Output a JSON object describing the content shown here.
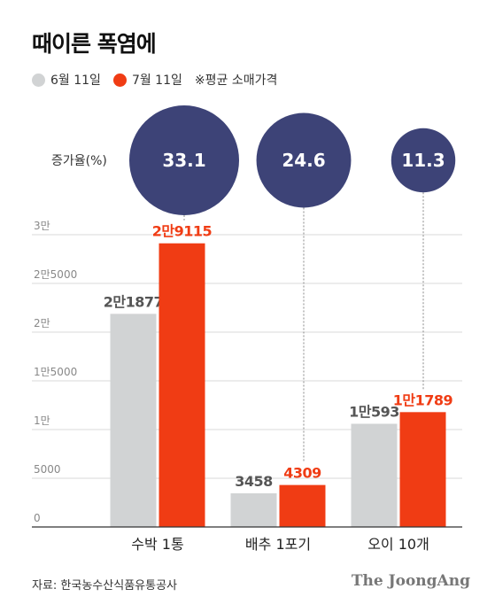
{
  "title": "때이른 폭염에",
  "legend": {
    "items": [
      {
        "label": "6월 11일",
        "color": "#d1d3d4"
      },
      {
        "label": "7월 11일",
        "color": "#f03c14"
      }
    ],
    "note": "※평균 소매가격"
  },
  "increase": {
    "label": "증가율(%)",
    "values": [
      "33.1",
      "24.6",
      "11.3"
    ],
    "color": "#3d4377"
  },
  "chart_data": {
    "type": "bar",
    "title": "때이른 폭염에",
    "categories": [
      "수박 1통",
      "배추 1포기",
      "오이 10개"
    ],
    "series": [
      {
        "name": "6월 11일",
        "values": [
          21877,
          3458,
          10593
        ],
        "labels": [
          "2만1877",
          "3458",
          "1만593"
        ],
        "color": "#d1d3d4"
      },
      {
        "name": "7월 11일",
        "values": [
          29115,
          4309,
          11789
        ],
        "labels": [
          "2만9115",
          "4309",
          "1만1789"
        ],
        "color": "#f03c14"
      }
    ],
    "ylim": [
      0,
      30000
    ],
    "yticks": [
      0,
      5000,
      10000,
      15000,
      20000,
      25000,
      30000
    ],
    "ytick_labels": [
      "0",
      "5000",
      "1만",
      "1만5000",
      "2만",
      "2만5000",
      "3만"
    ],
    "increase_rate_pct": [
      33.1,
      24.6,
      11.3
    ],
    "grid": true
  },
  "footer": {
    "source": "자료: 한국농수산식품유통공사",
    "brand": "The JoongAng"
  }
}
